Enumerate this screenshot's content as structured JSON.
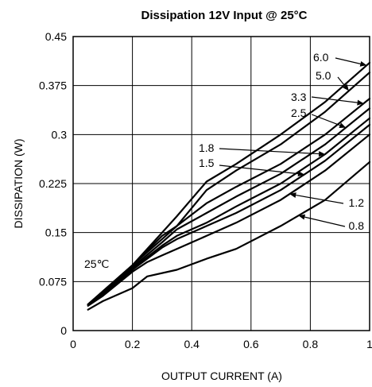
{
  "chart_data": {
    "type": "line",
    "title": "Dissipation 12V Input @ 25°C",
    "xlabel": "OUTPUT CURRENT (A)",
    "ylabel": "DISSIPATION (W)",
    "xlim": [
      0,
      1
    ],
    "ylim": [
      0,
      0.45
    ],
    "x_ticks": [
      "0",
      "0.2",
      "0.4",
      "0.6",
      "0.8",
      "1"
    ],
    "y_ticks": [
      "0",
      "0.075",
      "0.15",
      "0.225",
      "0.3",
      "0.375",
      "0.45"
    ],
    "grid": true,
    "annotation": "25℃",
    "series": [
      {
        "name": "6.0",
        "x": [
          0.05,
          0.1,
          0.2,
          0.3,
          0.35,
          0.45,
          0.55,
          0.7,
          0.85,
          1.0
        ],
        "y": [
          0.04,
          0.06,
          0.1,
          0.15,
          0.175,
          0.228,
          0.255,
          0.3,
          0.35,
          0.41
        ]
      },
      {
        "name": "5.0",
        "x": [
          0.05,
          0.1,
          0.2,
          0.3,
          0.35,
          0.45,
          0.55,
          0.7,
          0.85,
          1.0
        ],
        "y": [
          0.04,
          0.06,
          0.1,
          0.145,
          0.16,
          0.215,
          0.245,
          0.285,
          0.335,
          0.395
        ]
      },
      {
        "name": "3.3",
        "x": [
          0.05,
          0.1,
          0.2,
          0.3,
          0.35,
          0.45,
          0.55,
          0.7,
          0.85,
          1.0
        ],
        "y": [
          0.04,
          0.06,
          0.1,
          0.14,
          0.16,
          0.195,
          0.22,
          0.255,
          0.3,
          0.355
        ]
      },
      {
        "name": "2.5",
        "x": [
          0.05,
          0.1,
          0.2,
          0.3,
          0.35,
          0.45,
          0.55,
          0.7,
          0.85,
          1.0
        ],
        "y": [
          0.04,
          0.058,
          0.097,
          0.135,
          0.155,
          0.18,
          0.205,
          0.24,
          0.285,
          0.34
        ]
      },
      {
        "name": "1.8",
        "x": [
          0.05,
          0.1,
          0.2,
          0.3,
          0.35,
          0.45,
          0.55,
          0.7,
          0.85,
          1.0
        ],
        "y": [
          0.04,
          0.057,
          0.095,
          0.13,
          0.145,
          0.165,
          0.19,
          0.225,
          0.27,
          0.325
        ]
      },
      {
        "name": "1.5",
        "x": [
          0.05,
          0.1,
          0.2,
          0.3,
          0.35,
          0.45,
          0.55,
          0.7,
          0.85,
          1.0
        ],
        "y": [
          0.04,
          0.056,
          0.093,
          0.127,
          0.14,
          0.16,
          0.18,
          0.215,
          0.26,
          0.315
        ]
      },
      {
        "name": "1.2",
        "x": [
          0.05,
          0.1,
          0.2,
          0.25,
          0.3,
          0.35,
          0.45,
          0.55,
          0.7,
          0.85,
          1.0
        ],
        "y": [
          0.038,
          0.053,
          0.09,
          0.105,
          0.115,
          0.125,
          0.145,
          0.165,
          0.2,
          0.245,
          0.3
        ]
      },
      {
        "name": "0.8",
        "x": [
          0.05,
          0.1,
          0.2,
          0.25,
          0.35,
          0.45,
          0.55,
          0.7,
          0.85,
          1.0
        ],
        "y": [
          0.032,
          0.045,
          0.065,
          0.083,
          0.093,
          0.11,
          0.125,
          0.16,
          0.2,
          0.258
        ]
      }
    ]
  }
}
